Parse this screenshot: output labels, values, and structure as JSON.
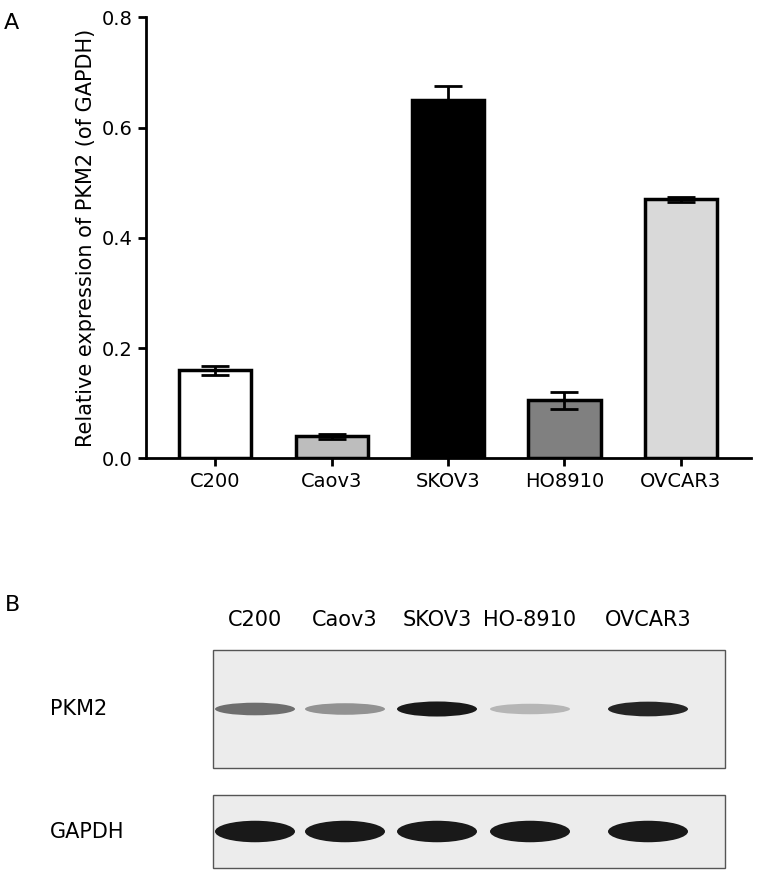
{
  "chart_data": {
    "type": "bar",
    "panel_label": "A",
    "y_label": "Relative expression of PKM2 (of GAPDH)",
    "categories": [
      "C200",
      "Caov3",
      "SKOV3",
      "HO8910",
      "OVCAR3"
    ],
    "values": [
      0.16,
      0.04,
      0.65,
      0.105,
      0.47
    ],
    "error": [
      0.008,
      0.005,
      0.025,
      0.015,
      0.005
    ],
    "colors": [
      "#ffffff",
      "#bdbdbd",
      "#000000",
      "#808080",
      "#d9d9d9"
    ],
    "ylim": [
      0,
      0.8
    ],
    "yticks": [
      0.0,
      0.2,
      0.4,
      0.6,
      0.8
    ],
    "grid": false
  },
  "blot": {
    "panel_label": "B",
    "lanes": [
      "C200",
      "Caov3",
      "SKOV3",
      "HO-8910",
      "OVCAR3"
    ],
    "rows": [
      {
        "label": "PKM2",
        "intensity": [
          0.6,
          0.45,
          0.95,
          0.3,
          0.9
        ]
      },
      {
        "label": "GAPDH",
        "intensity": [
          0.95,
          0.95,
          0.95,
          0.95,
          0.95
        ]
      }
    ]
  }
}
